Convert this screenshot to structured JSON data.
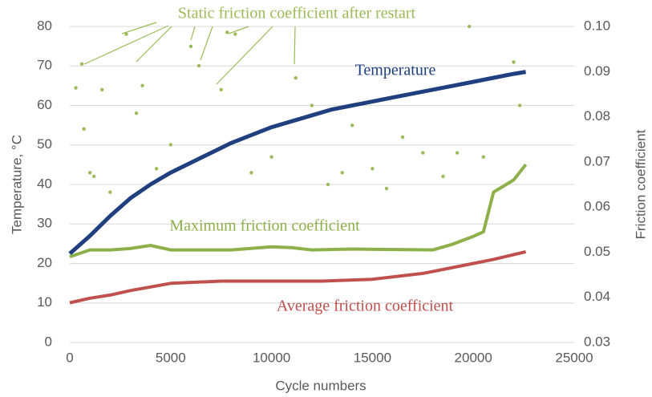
{
  "chart_data": {
    "type": "scatter",
    "xlabel": "Cycle numbers",
    "ylabel": "Temperature, °C",
    "y2label": "Friction coefficient",
    "xlim": [
      0,
      25000
    ],
    "xticks": [
      0,
      5000,
      10000,
      15000,
      20000,
      25000
    ],
    "ylim": [
      0,
      80
    ],
    "yticks": [
      0,
      10,
      20,
      30,
      40,
      50,
      60,
      70,
      80
    ],
    "y2lim": [
      0.03,
      0.1
    ],
    "y2ticks": [
      0.03,
      0.04,
      0.05,
      0.06,
      0.07,
      0.08,
      0.09,
      {
        "value": 0.1,
        "label": "0.10"
      }
    ],
    "grid": true,
    "series": [
      {
        "name": "Static friction coefficient after restart",
        "color": "#9bbb59",
        "axis": "y2",
        "style": "points",
        "x": [
          300,
          600,
          700,
          1000,
          1200,
          1600,
          2000,
          2800,
          3300,
          3600,
          4300,
          5000,
          6000,
          6400,
          7500,
          7800,
          8200,
          9000,
          10000,
          11200,
          12000,
          12800,
          13500,
          14000,
          15000,
          15700,
          16500,
          17500,
          18500,
          19200,
          19800,
          20500,
          22000,
          22300
        ],
        "values": [
          0.0864,
          0.0917,
          0.0773,
          0.0676,
          0.0668,
          0.086,
          0.0633,
          0.0983,
          0.0808,
          0.0869,
          0.0685,
          0.0738,
          0.0956,
          0.0913,
          0.086,
          0.0987,
          0.0983,
          0.0676,
          0.0711,
          0.0886,
          0.0825,
          0.065,
          0.0676,
          0.0781,
          0.0685,
          0.0641,
          0.0755,
          0.072,
          0.0668,
          0.072,
          0.1,
          0.0711,
          0.0921,
          0.0825
        ]
      },
      {
        "name": "Temperature",
        "color": "#1f3f7f",
        "axis": "y",
        "style": "line",
        "x": [
          0,
          1000,
          2000,
          3000,
          4000,
          5000,
          6000,
          7000,
          8000,
          9000,
          10000,
          11000,
          12000,
          13000,
          14000,
          15000,
          16000,
          17000,
          18000,
          19000,
          20000,
          21000,
          22000,
          22600
        ],
        "values": [
          22.5,
          27,
          32,
          36.5,
          40,
          43,
          45.5,
          48,
          50.5,
          52.5,
          54.5,
          56,
          57.5,
          59,
          60,
          61,
          62,
          63,
          64,
          65,
          66,
          67,
          68,
          68.5
        ]
      },
      {
        "name": "Maximum friction coefficient",
        "color": "#8db04a",
        "axis": "y2",
        "style": "line",
        "x": [
          0,
          1000,
          2000,
          3000,
          4000,
          5000,
          6000,
          8000,
          10000,
          11000,
          12000,
          14000,
          16000,
          18000,
          19000,
          20000,
          20500,
          21000,
          22000,
          22600
        ],
        "values": [
          0.049,
          0.0505,
          0.0505,
          0.0508,
          0.0515,
          0.0505,
          0.0505,
          0.0505,
          0.0512,
          0.051,
          0.0505,
          0.0507,
          0.0506,
          0.0505,
          0.0518,
          0.0535,
          0.0545,
          0.0633,
          0.066,
          0.0694
        ]
      },
      {
        "name": "Average friction coefficient",
        "color": "#c0504d",
        "axis": "y2",
        "style": "line",
        "x": [
          0,
          1000,
          2000,
          3000,
          5000,
          7500,
          10000,
          12500,
          15000,
          17500,
          20000,
          21000,
          22600
        ],
        "values": [
          0.0388,
          0.0398,
          0.0405,
          0.0415,
          0.0431,
          0.0436,
          0.0436,
          0.0436,
          0.044,
          0.0453,
          0.0475,
          0.0484,
          0.0501
        ]
      }
    ]
  }
}
